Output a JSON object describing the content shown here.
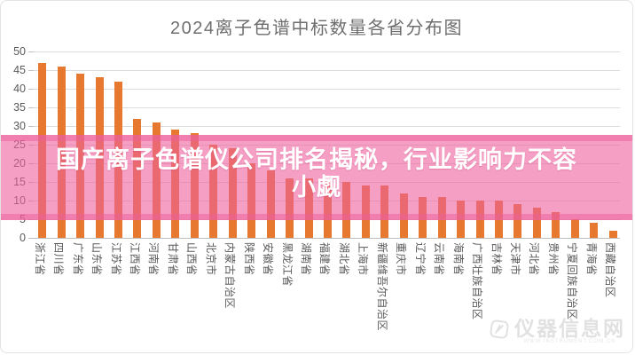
{
  "banner": {
    "line1": "国产离子色谱仪公司排名揭秘，行业影响力不容",
    "line2": "小觑",
    "background_color": "#EC5F9B",
    "text_color": "#FFFFFF"
  },
  "watermark": {
    "site_name": "仪器信息网",
    "logo": "instrument-info-logo"
  },
  "chart_data": {
    "type": "bar",
    "title": "2024离子色谱中标数量各省分布图",
    "xlabel": "",
    "ylabel": "",
    "ylim": [
      0,
      50
    ],
    "yticks": [
      0,
      5,
      10,
      15,
      20,
      25,
      30,
      35,
      40,
      45,
      50
    ],
    "grid": true,
    "legend": "none",
    "bar_color": "#E6792F",
    "gridline_color": "#DCDCDC",
    "axis_label_color": "#595959",
    "title_color": "#6E6E6E",
    "categories": [
      "浙江省",
      "四川省",
      "广东省",
      "山东省",
      "江苏省",
      "江西省",
      "河南省",
      "甘肃省",
      "山西省",
      "北京市",
      "内蒙古自治区",
      "陕西省",
      "安徽省",
      "黑龙江省",
      "湖南省",
      "福建省",
      "湖北省",
      "上海市",
      "新疆维吾尔自治区",
      "重庆市",
      "辽宁省",
      "云南省",
      "海南省",
      "广西壮族自治区",
      "吉林省",
      "天津市",
      "河北省",
      "贵州省",
      "宁夏回族自治区",
      "青海省",
      "西藏自治区"
    ],
    "values": [
      47,
      46,
      44,
      43,
      42,
      32,
      31,
      29,
      28,
      25,
      24,
      20,
      18,
      16,
      16,
      15,
      15,
      14,
      14,
      12,
      11,
      11,
      10,
      10,
      10,
      9,
      8,
      7,
      5,
      4,
      2
    ]
  }
}
